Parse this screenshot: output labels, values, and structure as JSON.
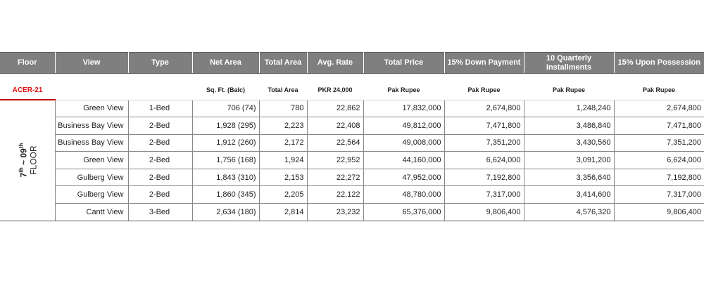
{
  "header": {
    "floor": "Floor",
    "view": "View",
    "type": "Type",
    "net_area": "Net Area",
    "total_area": "Total Area",
    "avg_rate": "Avg. Rate",
    "total_price": "Total Price",
    "down_payment": "15% Down Payment",
    "quarterly": "10 Quarterly Installments",
    "possession": "15% Upon Possession"
  },
  "subheader": {
    "project": "ACER-21",
    "net_area_unit": "Sq. Ft. (Balc)",
    "total_area_unit": "Total Area",
    "rate_unit": "PKR 24,000",
    "price_unit": "Pak Rupee",
    "down_unit": "Pak Rupee",
    "quarterly_unit": "Pak Rupee",
    "possession_unit": "Pak Rupee"
  },
  "floor_label": {
    "line1_prefix": "7",
    "line1_sup1": "th",
    "line1_mid": " ~ 09",
    "line1_sup2": "th",
    "line2": "FLOOR"
  },
  "rows": [
    {
      "view": "Green View",
      "type": "1-Bed",
      "net_area": "706 (74)",
      "total_area": "780",
      "avg_rate": "22,862",
      "total_price": "17,832,000",
      "down_payment": "2,674,800",
      "quarterly": "1,248,240",
      "possession": "2,674,800"
    },
    {
      "view": "Business Bay View",
      "type": "2-Bed",
      "net_area": "1,928 (295)",
      "total_area": "2,223",
      "avg_rate": "22,408",
      "total_price": "49,812,000",
      "down_payment": "7,471,800",
      "quarterly": "3,486,840",
      "possession": "7,471,800"
    },
    {
      "view": "Business Bay View",
      "type": "2-Bed",
      "net_area": "1,912 (260)",
      "total_area": "2,172",
      "avg_rate": "22,564",
      "total_price": "49,008,000",
      "down_payment": "7,351,200",
      "quarterly": "3,430,560",
      "possession": "7,351,200"
    },
    {
      "view": "Green View",
      "type": "2-Bed",
      "net_area": "1,756 (168)",
      "total_area": "1,924",
      "avg_rate": "22,952",
      "total_price": "44,160,000",
      "down_payment": "6,624,000",
      "quarterly": "3,091,200",
      "possession": "6,624,000"
    },
    {
      "view": "Gulberg View",
      "type": "2-Bed",
      "net_area": "1,843 (310)",
      "total_area": "2,153",
      "avg_rate": "22,272",
      "total_price": "47,952,000",
      "down_payment": "7,192,800",
      "quarterly": "3,356,640",
      "possession": "7,192,800"
    },
    {
      "view": "Gulberg View",
      "type": "2-Bed",
      "net_area": "1,860 (345)",
      "total_area": "2,205",
      "avg_rate": "22,122",
      "total_price": "48,780,000",
      "down_payment": "7,317,000",
      "quarterly": "3,414,600",
      "possession": "7,317,000"
    },
    {
      "view": "Cantt View",
      "type": "3-Bed",
      "net_area": "2,634 (180)",
      "total_area": "2,814",
      "avg_rate": "23,232",
      "total_price": "65,376,000",
      "down_payment": "9,806,400",
      "quarterly": "4,576,320",
      "possession": "9,806,400"
    }
  ]
}
